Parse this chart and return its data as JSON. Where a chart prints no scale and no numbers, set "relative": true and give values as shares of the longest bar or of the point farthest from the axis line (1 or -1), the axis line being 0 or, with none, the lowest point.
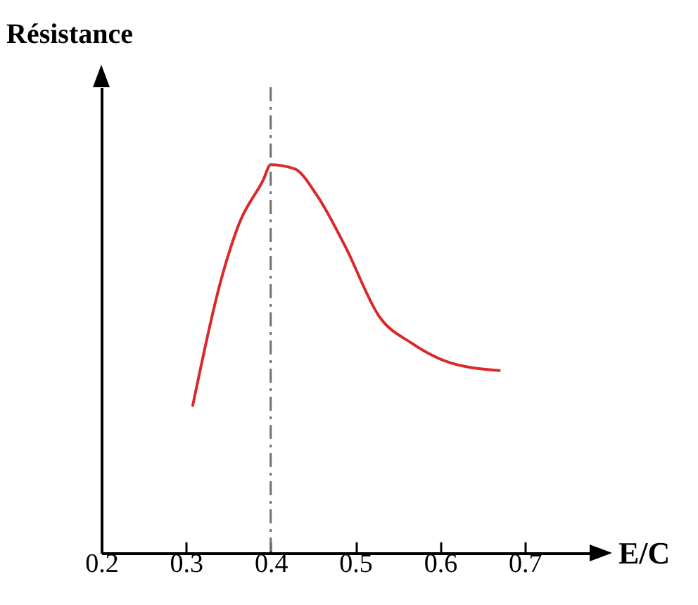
{
  "chart_data": {
    "type": "line",
    "relative": true,
    "xlabel": "E/C",
    "ylabel": "Résistance",
    "xlim": [
      0.2,
      0.78
    ],
    "xticks": [
      0.2,
      0.3,
      0.4,
      0.5,
      0.6,
      0.7
    ],
    "grid": false,
    "legend": false,
    "marker": "none",
    "line_style": "solid",
    "series": [
      {
        "color": "#d9292b",
        "x": [
          0.308,
          0.341,
          0.363,
          0.391,
          0.4,
          0.428,
          0.455,
          0.488,
          0.528,
          0.567,
          0.612,
          0.67
        ],
        "values": [
          0.38,
          0.7,
          0.85,
          0.96,
          1.0,
          0.99,
          0.92,
          0.79,
          0.61,
          0.54,
          0.49,
          0.47
        ]
      }
    ],
    "ref_lines": [
      {
        "axis": "x",
        "value": 0.4,
        "color": "#707070",
        "line_style": "dashed"
      }
    ]
  }
}
